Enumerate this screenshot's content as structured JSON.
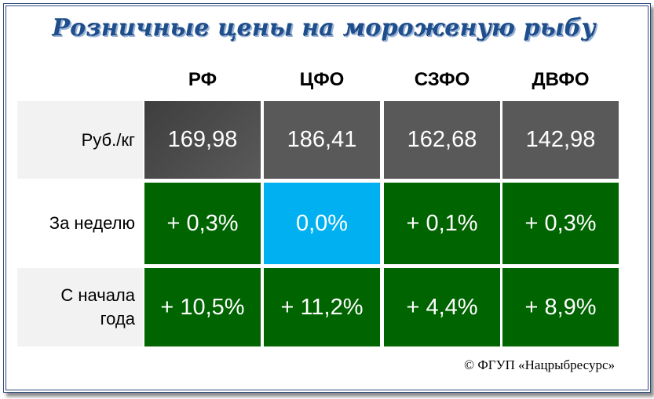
{
  "title": "Розничные цены на мороженую рыбу",
  "columns": [
    "РФ",
    "ЦФО",
    "СЗФО",
    "ДВФО"
  ],
  "rows": [
    {
      "label": "Руб./кг",
      "values": [
        "169,98",
        "186,41",
        "162,68",
        "142,98"
      ],
      "colors": [
        "#4a4a4a",
        "#595959",
        "#595959",
        "#595959"
      ]
    },
    {
      "label": "За неделю",
      "values": [
        "+ 0,3%",
        "0,0%",
        "+ 0,1%",
        "+ 0,3%"
      ],
      "colors": [
        "#006400",
        "#00b0f0",
        "#006400",
        "#006400"
      ]
    },
    {
      "label_line1": "С начала",
      "label_line2": "года",
      "values": [
        "+ 10,5%",
        "+ 11,2%",
        "+ 4,4%",
        "+ 8,9%"
      ],
      "colors": [
        "#006400",
        "#006400",
        "#006400",
        "#006400"
      ]
    }
  ],
  "source": "© ФГУП «Нацрыбресурс»",
  "colors": {
    "title": "#1f4e8c",
    "frame": "#2e4a7c",
    "price_cell": "#595959",
    "increase_cell": "#006400",
    "no_change_cell": "#00b0f0",
    "label_bg": "#f2f2f2"
  }
}
